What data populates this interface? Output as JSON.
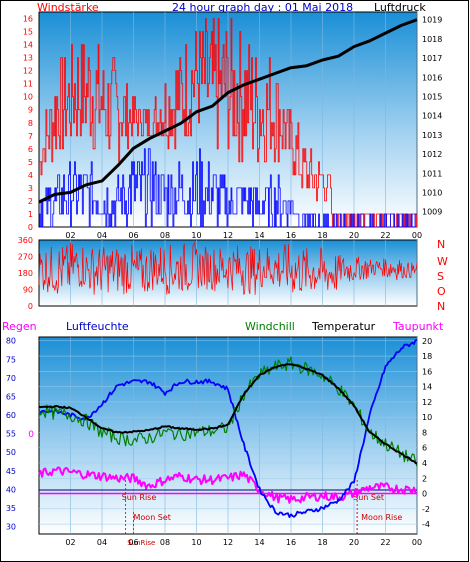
{
  "header": {
    "title": "24 hour graph day : 01 Mai 2018",
    "left_label": "Windstärke",
    "right_label": "Luftdruck"
  },
  "colors": {
    "wind_red": "#ff0000",
    "gust_red": "#ff0000",
    "wind_blue": "#0000ff",
    "pressure_black": "#000000",
    "temp_black": "#000000",
    "humidity_blue": "#0000ff",
    "windchill_green": "#008000",
    "dewpoint_magenta": "#ff00ff",
    "rain_magenta": "#ff00ff",
    "sky_top": "#1a8fd6",
    "sky_bottom": "#ffffff"
  },
  "x_ticks": [
    "02",
    "04",
    "06",
    "08",
    "10",
    "12",
    "14",
    "16",
    "18",
    "20",
    "22",
    "00"
  ],
  "legend": {
    "regen": "Regen",
    "luftfeuchte": "Luftfeuchte",
    "windchill": "Windchill",
    "temperatur": "Temperatur",
    "taupunkt": "Taupunkt"
  },
  "compass": [
    "N",
    "W",
    "S",
    "O",
    "N"
  ],
  "annotations": {
    "sun_rise": "Sun Rise",
    "sun_set": "Sun Set",
    "moon_set": "Moon Set",
    "moon_rise": "Moon Rise",
    "sun_rise_short": "SunRise",
    "rain_zero": "0"
  },
  "chart_data": [
    {
      "type": "line",
      "title": "24 hour graph day : 01 Mai 2018",
      "y_left_label": "Windstärke",
      "y_right_label": "Luftdruck",
      "y_left_ticks": [
        0,
        1,
        2,
        3,
        4,
        5,
        6,
        7,
        8,
        9,
        10,
        11,
        12,
        13,
        14,
        15,
        16
      ],
      "y_right_ticks": [
        1009,
        1010,
        1011,
        1012,
        1013,
        1014,
        1015,
        1016,
        1017,
        1018,
        1019
      ],
      "ylim_left": [
        0,
        16.5
      ],
      "ylim_right": [
        1008.2,
        1019.4
      ],
      "series": [
        {
          "name": "Luftdruck",
          "x": [
            0,
            1,
            2,
            3,
            4,
            5,
            6,
            7,
            8,
            9,
            10,
            11,
            12,
            13,
            14,
            15,
            16,
            17,
            18,
            19,
            20,
            21,
            22,
            23,
            24
          ],
          "values": [
            1009.5,
            1009.9,
            1010.0,
            1010.4,
            1010.6,
            1011.4,
            1012.3,
            1012.8,
            1013.2,
            1013.6,
            1014.2,
            1014.5,
            1015.2,
            1015.6,
            1015.9,
            1016.2,
            1016.5,
            1016.6,
            1016.9,
            1017.1,
            1017.6,
            1017.9,
            1018.3,
            1018.7,
            1019.0
          ]
        }
      ],
      "wind_gust_max": [
        6,
        13,
        14,
        15,
        14,
        13,
        10,
        9,
        12,
        14,
        16,
        16,
        16,
        15,
        14,
        13,
        9,
        6,
        5,
        3,
        2,
        1,
        1,
        1,
        1
      ],
      "wind_avg_max": [
        3,
        4,
        5,
        5,
        4,
        4,
        6,
        6,
        5,
        5,
        6,
        5,
        4,
        4,
        3,
        4,
        3,
        1,
        1,
        0,
        0,
        0,
        0,
        0,
        0
      ]
    },
    {
      "type": "scatter",
      "y_ticks": [
        0,
        90,
        180,
        270,
        360
      ],
      "ylim": [
        0,
        360
      ],
      "wind_direction_range": [
        [
          70,
          330
        ],
        [
          50,
          340
        ],
        [
          90,
          350
        ],
        [
          60,
          330
        ],
        [
          70,
          330
        ],
        [
          60,
          340
        ],
        [
          50,
          320
        ],
        [
          80,
          340
        ],
        [
          60,
          340
        ],
        [
          70,
          350
        ],
        [
          90,
          330
        ],
        [
          80,
          330
        ],
        [
          80,
          340
        ],
        [
          60,
          330
        ],
        [
          90,
          340
        ],
        [
          70,
          340
        ],
        [
          50,
          330
        ],
        [
          60,
          320
        ],
        [
          60,
          300
        ],
        [
          120,
          280
        ],
        [
          140,
          270
        ],
        [
          160,
          260
        ],
        [
          140,
          280
        ],
        [
          150,
          240
        ]
      ]
    },
    {
      "type": "line",
      "y_left_label": "Regen",
      "y_hum_label": "Luftfeuchte",
      "y_right_label": "Taupunkt",
      "y_hum_ticks": [
        30,
        35,
        40,
        45,
        50,
        55,
        60,
        65,
        70,
        75,
        80
      ],
      "y_temp_ticks": [
        -4,
        -2,
        0,
        2,
        4,
        6,
        8,
        10,
        12,
        14,
        16,
        18,
        20
      ],
      "ylim_hum": [
        28,
        81
      ],
      "ylim_temp": [
        -5.3,
        20.5
      ],
      "series": [
        {
          "name": "Temperatur",
          "x": [
            0,
            1,
            2,
            3,
            4,
            5,
            6,
            7,
            8,
            9,
            10,
            11,
            12,
            13,
            14,
            15,
            16,
            17,
            18,
            19,
            20,
            21,
            22,
            23,
            24
          ],
          "values": [
            11.3,
            11.4,
            11.2,
            10.0,
            8.5,
            8.0,
            8.1,
            8.3,
            8.8,
            8.5,
            8.4,
            8.5,
            9.0,
            13.0,
            15.5,
            16.6,
            17.0,
            16.3,
            15.5,
            13.8,
            11.5,
            8.0,
            6.5,
            5.2,
            4.0
          ]
        },
        {
          "name": "Windchill",
          "x": [
            0,
            1,
            2,
            3,
            4,
            5,
            6,
            7,
            8,
            9,
            10,
            11,
            12,
            13,
            14,
            15,
            16,
            17,
            18,
            19,
            20,
            21,
            22,
            23,
            24
          ],
          "values": [
            11.0,
            10.5,
            10.3,
            9.5,
            8.0,
            7.3,
            7.0,
            7.3,
            8.0,
            7.8,
            8.0,
            8.2,
            8.6,
            13.0,
            15.5,
            16.6,
            17.0,
            16.3,
            15.5,
            13.8,
            11.5,
            8.0,
            6.5,
            5.2,
            4.0
          ]
        },
        {
          "name": "Luftfeuchte",
          "x": [
            0,
            1,
            2,
            3,
            4,
            5,
            6,
            7,
            8,
            9,
            10,
            11,
            12,
            13,
            14,
            15,
            16,
            17,
            18,
            19,
            20,
            21,
            22,
            23,
            24
          ],
          "values": [
            61,
            61,
            60,
            59,
            63,
            68,
            69,
            69,
            66,
            69,
            69,
            69,
            67,
            52,
            40,
            34,
            33,
            34,
            35,
            37,
            42,
            60,
            73,
            78,
            80
          ]
        },
        {
          "name": "Taupunkt",
          "x": [
            0,
            1,
            2,
            3,
            4,
            5,
            6,
            7,
            8,
            9,
            10,
            11,
            12,
            13,
            14,
            15,
            16,
            17,
            18,
            19,
            20,
            21,
            22,
            23,
            24
          ],
          "values": [
            2.5,
            3.0,
            2.8,
            2.5,
            2.3,
            2.0,
            2.0,
            1.0,
            1.8,
            2.3,
            1.8,
            1.8,
            2.0,
            2.5,
            0.5,
            -0.5,
            -0.8,
            -0.5,
            -0.3,
            -0.5,
            0.0,
            0.8,
            0.8,
            0.6,
            0.5
          ]
        }
      ],
      "regen_line": 0,
      "sun_rise_x": 5.5,
      "sun_set_x": 20.2,
      "moon_set_x": 6.0,
      "moon_rise_x": 20.2
    }
  ]
}
